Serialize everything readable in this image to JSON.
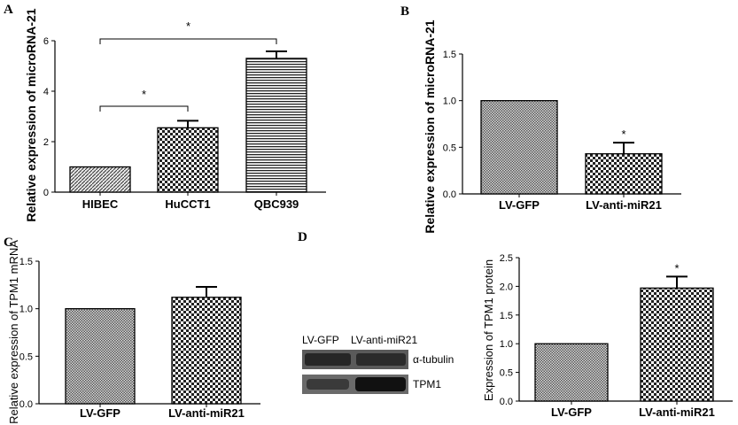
{
  "figure": {
    "panels": [
      {
        "label": "A"
      },
      {
        "label": "B"
      },
      {
        "label": "C"
      },
      {
        "label": "D"
      }
    ],
    "blot": {
      "lanes": [
        "LV-GFP",
        "LV-anti-miR21"
      ],
      "bands": [
        "α-tubulin",
        "TPM1"
      ]
    }
  },
  "chart_data": [
    {
      "panel": "A",
      "type": "bar",
      "ylabel": "Relative expression of microRNA-21",
      "categories": [
        "HIBEC",
        "HuCCT1",
        "QBC939"
      ],
      "values": [
        1.0,
        2.55,
        5.3
      ],
      "errors": [
        0.0,
        0.28,
        0.28
      ],
      "ylim": [
        0,
        6
      ],
      "yticks": [
        "0",
        "2",
        "4",
        "6"
      ],
      "significance": [
        {
          "from": 0,
          "to": 1,
          "text": "*"
        },
        {
          "from": 0,
          "to": 2,
          "text": "*"
        }
      ],
      "patterns": [
        "pat-diag",
        "pat-check",
        "pat-hstripe"
      ]
    },
    {
      "panel": "B",
      "type": "bar",
      "ylabel": "Relative expression of microRNA-21",
      "categories": [
        "LV-GFP",
        "LV-anti-miR21"
      ],
      "values": [
        1.0,
        0.43
      ],
      "errors": [
        0.0,
        0.12
      ],
      "ylim": [
        0,
        1.5
      ],
      "yticks": [
        "0.0",
        "0.5",
        "1.0",
        "1.5"
      ],
      "stars": [
        null,
        "*"
      ],
      "patterns": [
        "pat-fine",
        "pat-check"
      ]
    },
    {
      "panel": "C",
      "type": "bar",
      "ylabel": "Relative expression of TPM1 mRNA",
      "categories": [
        "LV-GFP",
        "LV-anti-miR21"
      ],
      "values": [
        1.0,
        1.12
      ],
      "errors": [
        0.0,
        0.11
      ],
      "ylim": [
        0,
        1.5
      ],
      "yticks": [
        "0.0",
        "0.5",
        "1.0",
        "1.5"
      ],
      "patterns": [
        "pat-fine",
        "pat-check"
      ]
    },
    {
      "panel": "D",
      "type": "bar",
      "ylabel": "Expression of TPM1 protein",
      "categories": [
        "LV-GFP",
        "LV-anti-miR21"
      ],
      "values": [
        1.0,
        1.97
      ],
      "errors": [
        0.0,
        0.2
      ],
      "ylim": [
        0,
        2.5
      ],
      "yticks": [
        "0.0",
        "0.5",
        "1.0",
        "1.5",
        "2.0",
        "2.5"
      ],
      "stars": [
        null,
        "*"
      ],
      "patterns": [
        "pat-fine",
        "pat-check"
      ]
    }
  ]
}
